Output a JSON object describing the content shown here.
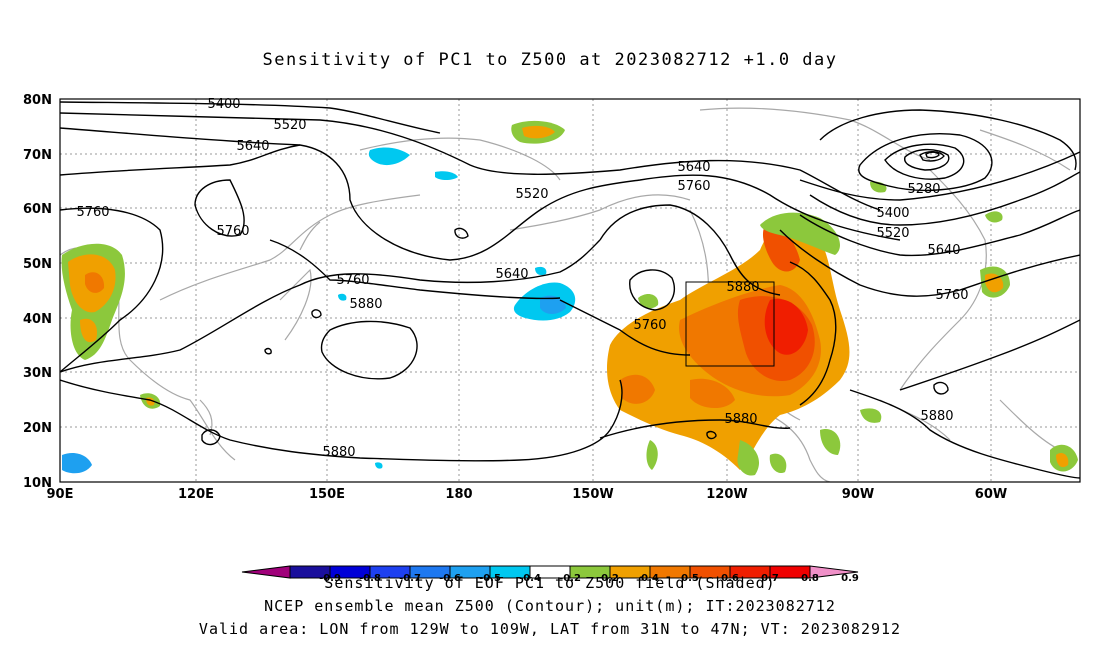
{
  "title": "Sensitivity of PC1 to Z500 at 2023082712 +1.0 day",
  "lat_labels": [
    "80N",
    "70N",
    "60N",
    "50N",
    "40N",
    "30N",
    "20N",
    "10N"
  ],
  "lon_labels": [
    "90E",
    "120E",
    "150E",
    "180",
    "150W",
    "120W",
    "90W",
    "60W"
  ],
  "contour_labels": [
    "5400",
    "5520",
    "5640",
    "5520",
    "5760",
    "5760",
    "5640",
    "5760",
    "5880",
    "5640",
    "5760",
    "5880",
    "5760",
    "5280",
    "5400",
    "5520",
    "5640",
    "5760",
    "5880",
    "5880",
    "5880"
  ],
  "colorbar": {
    "ticks": [
      "-0.9",
      "-0.8",
      "-0.7",
      "-0.6",
      "-0.5",
      "-0.4",
      "-0.2",
      "0.2",
      "0.4",
      "0.5",
      "0.6",
      "0.7",
      "0.8",
      "0.9"
    ],
    "colors": [
      "#a0007a",
      "#1a0f9c",
      "#0000d8",
      "#1e40f0",
      "#1e78f0",
      "#1ea0f0",
      "#00c8f0",
      "#ffffff",
      "#8cc83c",
      "#f0a000",
      "#f07800",
      "#f05000",
      "#f01e00",
      "#f00000",
      "#f090c8"
    ]
  },
  "footer": {
    "line1": "Sensitivity of EOF PC1 to Z500 field (Shaded)",
    "line2": "NCEP ensemble mean Z500 (Contour); unit(m); IT:2023082712",
    "line3": "Valid area: LON from 129W to 109W, LAT from 31N to 47N; VT: 2023082912"
  }
}
